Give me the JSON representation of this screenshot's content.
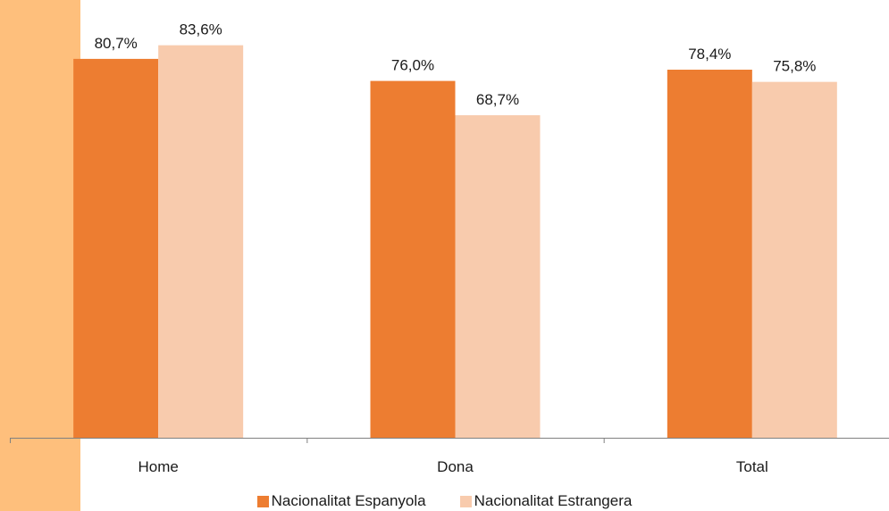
{
  "chart_data": {
    "type": "bar",
    "title": "",
    "xlabel": "",
    "ylabel": "",
    "ylim": [
      0,
      90
    ],
    "grid": false,
    "legend_position": "bottom",
    "categories": [
      "Home",
      "Dona",
      "Total"
    ],
    "series": [
      {
        "name": "Nacionalitat Espanyola",
        "values": [
          80.7,
          76.0,
          78.4
        ],
        "labels": [
          "80,7%",
          "76,0%",
          "78,4%"
        ],
        "color": "#ED7D31"
      },
      {
        "name": "Nacionalitat Estrangera",
        "values": [
          83.6,
          68.7,
          75.8
        ],
        "labels": [
          "83,6%",
          "68,7%",
          "75,8%"
        ],
        "color": "#F8CBAD"
      }
    ]
  },
  "colors": {
    "side_band": "#FEBF7C",
    "axis": "#808080"
  }
}
